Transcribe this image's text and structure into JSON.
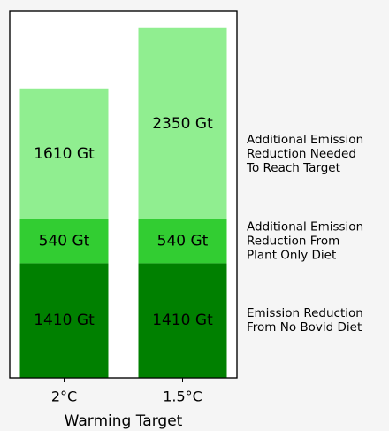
{
  "chart_data": {
    "type": "stacked_bar",
    "xlabel": "Warming Target",
    "categories": [
      "2°C",
      "1.5°C"
    ],
    "series": [
      {
        "name": "Emission Reduction\nFrom No Bovid Diet",
        "color": "#008000",
        "values": [
          1410,
          1410
        ],
        "value_labels": [
          "1410 Gt",
          "1410 Gt"
        ]
      },
      {
        "name": "Additional Emission\nReduction From\nPlant Only Diet",
        "color": "#32cd32",
        "values": [
          540,
          540
        ],
        "value_labels": [
          "540 Gt",
          "540 Gt"
        ]
      },
      {
        "name": "Additional Emission\nReduction Needed\nTo Reach Target",
        "color": "#90ee90",
        "values": [
          1610,
          2350
        ],
        "value_labels": [
          "1610 Gt",
          "2350 Gt"
        ]
      }
    ],
    "ylim": [
      0,
      4515
    ]
  }
}
